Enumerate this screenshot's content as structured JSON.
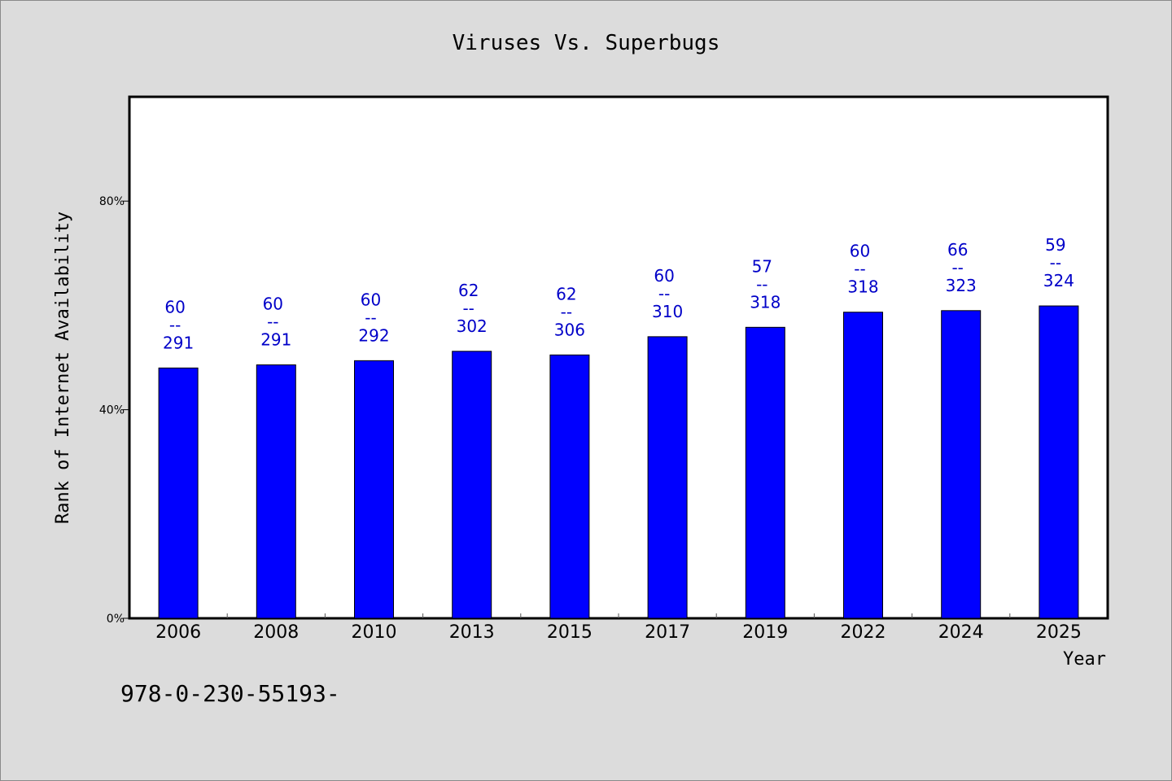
{
  "chart_data": {
    "type": "bar",
    "title": "Viruses Vs. Superbugs",
    "xlabel": "Year",
    "ylabel": "Rank of Internet Availability",
    "ylim": [
      0,
      100
    ],
    "yticks": [
      0,
      40,
      80
    ],
    "ytick_labels": [
      "0%",
      "40%",
      "80%"
    ],
    "categories": [
      "2006",
      "2008",
      "2010",
      "2013",
      "2015",
      "2017",
      "2019",
      "2022",
      "2024",
      "2025"
    ],
    "values": [
      48,
      48.6,
      49.4,
      51.2,
      50.5,
      54,
      55.8,
      58.7,
      59,
      59.9
    ],
    "data_labels": [
      {
        "top": "60",
        "sep": "--",
        "bottom": "291"
      },
      {
        "top": "60",
        "sep": "--",
        "bottom": "291"
      },
      {
        "top": "60",
        "sep": "--",
        "bottom": "292"
      },
      {
        "top": "62",
        "sep": "--",
        "bottom": "302"
      },
      {
        "top": "62",
        "sep": "--",
        "bottom": "306"
      },
      {
        "top": "60",
        "sep": "--",
        "bottom": "310"
      },
      {
        "top": "57",
        "sep": "--",
        "bottom": "318"
      },
      {
        "top": "60",
        "sep": "--",
        "bottom": "318"
      },
      {
        "top": "66",
        "sep": "--",
        "bottom": "323"
      },
      {
        "top": "59",
        "sep": "--",
        "bottom": "324"
      }
    ],
    "bar_color": "#0000ff",
    "label_color": "#0000c8",
    "grid": false,
    "legend": "none"
  },
  "footer_text": "978-0-230-55193-"
}
